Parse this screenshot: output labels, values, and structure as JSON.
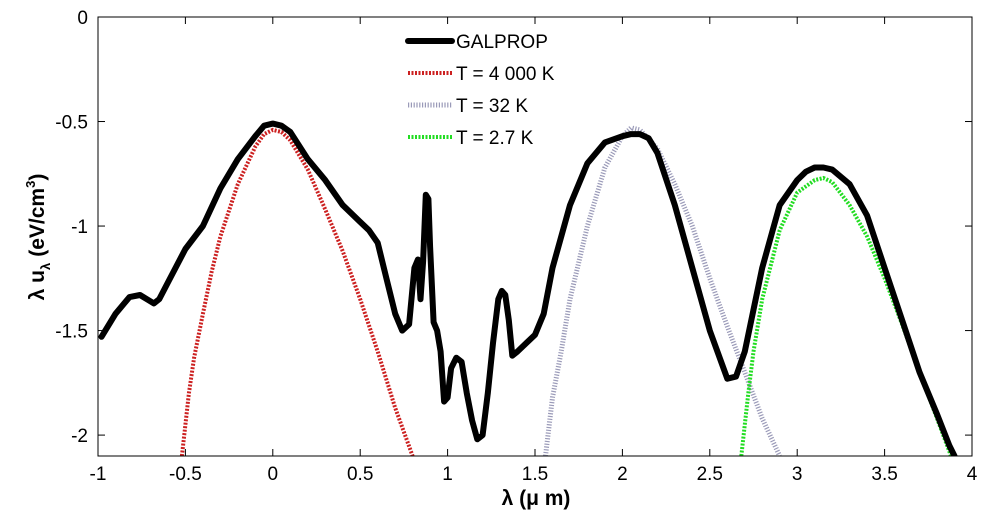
{
  "chart_data": {
    "type": "line",
    "title": "",
    "xlabel_text": "λ (μ m)",
    "ylabel_main": "λ u",
    "ylabel_sub": "λ",
    "ylabel_unit": "(eV/cm",
    "ylabel_sup": "3",
    "ylabel_close": ")",
    "xlim": [
      -1,
      4
    ],
    "ylim": [
      -2.1,
      0
    ],
    "xticks": [
      -1,
      -0.5,
      0,
      0.5,
      1,
      1.5,
      2,
      2.5,
      3,
      3.5,
      4
    ],
    "xtick_labels": [
      "-1",
      "-0.5",
      "0",
      "0.5",
      "1",
      "1.5",
      "2",
      "2.5",
      "3",
      "3.5",
      "4"
    ],
    "yticks": [
      0,
      -0.5,
      -1,
      -1.5,
      -2
    ],
    "ytick_labels": [
      "0",
      "-0.5",
      "-1",
      "-1.5",
      "-2"
    ],
    "grid": false,
    "legend_position": "top-center",
    "series": [
      {
        "name": "GALPROP",
        "color": "#000000",
        "style": "solid",
        "x": [
          -0.98,
          -0.9,
          -0.82,
          -0.76,
          -0.72,
          -0.68,
          -0.65,
          -0.6,
          -0.5,
          -0.4,
          -0.3,
          -0.2,
          -0.1,
          -0.05,
          0,
          0.05,
          0.1,
          0.2,
          0.3,
          0.4,
          0.5,
          0.55,
          0.6,
          0.65,
          0.7,
          0.74,
          0.78,
          0.81,
          0.83,
          0.845,
          0.86,
          0.875,
          0.89,
          0.9,
          0.92,
          0.94,
          0.96,
          0.98,
          1.0,
          1.02,
          1.05,
          1.08,
          1.11,
          1.14,
          1.17,
          1.2,
          1.23,
          1.26,
          1.29,
          1.31,
          1.33,
          1.35,
          1.37,
          1.4,
          1.45,
          1.5,
          1.55,
          1.6,
          1.7,
          1.8,
          1.9,
          2.0,
          2.05,
          2.1,
          2.15,
          2.2,
          2.3,
          2.4,
          2.5,
          2.6,
          2.65,
          2.7,
          2.8,
          2.9,
          3.0,
          3.05,
          3.1,
          3.15,
          3.2,
          3.3,
          3.4,
          3.5,
          3.6,
          3.7,
          3.8,
          3.87,
          3.9
        ],
        "y": [
          -1.53,
          -1.42,
          -1.34,
          -1.33,
          -1.35,
          -1.37,
          -1.35,
          -1.27,
          -1.11,
          -1.0,
          -0.82,
          -0.68,
          -0.57,
          -0.52,
          -0.51,
          -0.52,
          -0.55,
          -0.68,
          -0.78,
          -0.9,
          -0.98,
          -1.02,
          -1.08,
          -1.25,
          -1.42,
          -1.5,
          -1.47,
          -1.2,
          -1.16,
          -1.35,
          -1.17,
          -0.85,
          -0.87,
          -1.1,
          -1.46,
          -1.5,
          -1.6,
          -1.84,
          -1.82,
          -1.68,
          -1.63,
          -1.65,
          -1.8,
          -1.93,
          -2.02,
          -2.0,
          -1.8,
          -1.56,
          -1.35,
          -1.31,
          -1.33,
          -1.45,
          -1.62,
          -1.6,
          -1.56,
          -1.52,
          -1.42,
          -1.2,
          -0.9,
          -0.7,
          -0.6,
          -0.57,
          -0.56,
          -0.56,
          -0.58,
          -0.65,
          -0.9,
          -1.2,
          -1.5,
          -1.73,
          -1.72,
          -1.6,
          -1.2,
          -0.9,
          -0.78,
          -0.74,
          -0.72,
          -0.72,
          -0.73,
          -0.8,
          -0.95,
          -1.2,
          -1.45,
          -1.7,
          -1.9,
          -2.05,
          -2.1
        ]
      },
      {
        "name": "T = 4 000 K",
        "color": "#cc2020",
        "style": "dotted",
        "x": [
          -0.52,
          -0.48,
          -0.45,
          -0.4,
          -0.35,
          -0.3,
          -0.2,
          -0.1,
          -0.05,
          0,
          0.05,
          0.1,
          0.2,
          0.3,
          0.4,
          0.5,
          0.6,
          0.7,
          0.8
        ],
        "y": [
          -2.1,
          -1.8,
          -1.63,
          -1.42,
          -1.22,
          -1.05,
          -0.8,
          -0.62,
          -0.56,
          -0.54,
          -0.55,
          -0.59,
          -0.73,
          -0.92,
          -1.12,
          -1.35,
          -1.6,
          -1.87,
          -2.1
        ]
      },
      {
        "name": "T = 32 K",
        "color": "#9a9ab8",
        "style": "hatched",
        "x": [
          1.56,
          1.6,
          1.65,
          1.7,
          1.8,
          1.9,
          2.0,
          2.05,
          2.1,
          2.2,
          2.3,
          2.4,
          2.5,
          2.6,
          2.7,
          2.8,
          2.9
        ],
        "y": [
          -2.1,
          -1.82,
          -1.6,
          -1.35,
          -1.0,
          -0.72,
          -0.57,
          -0.53,
          -0.54,
          -0.63,
          -0.8,
          -1.0,
          -1.25,
          -1.48,
          -1.7,
          -1.92,
          -2.1
        ]
      },
      {
        "name": "T = 2.7 K",
        "color": "#22dd22",
        "style": "dotted",
        "x": [
          2.68,
          2.72,
          2.75,
          2.8,
          2.9,
          3.0,
          3.1,
          3.15,
          3.2,
          3.3,
          3.4,
          3.5,
          3.6,
          3.7,
          3.8,
          3.88
        ],
        "y": [
          -2.1,
          -1.8,
          -1.6,
          -1.35,
          -1.02,
          -0.84,
          -0.78,
          -0.77,
          -0.79,
          -0.9,
          -1.05,
          -1.25,
          -1.47,
          -1.7,
          -1.92,
          -2.1
        ]
      }
    ]
  }
}
